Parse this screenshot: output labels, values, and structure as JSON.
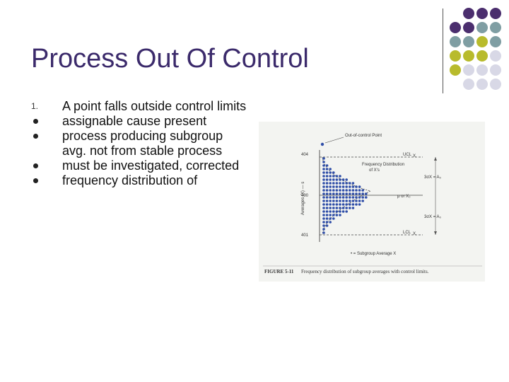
{
  "slide": {
    "title": "Process Out Of Control"
  },
  "bullets": [
    {
      "marker": "1.",
      "text": "A point falls outside control limits"
    },
    {
      "marker": "dot",
      "text": "assignable cause present"
    },
    {
      "marker": "dot",
      "text": "process producing subgroup avg. not from stable process"
    },
    {
      "marker": "dot",
      "text": "must be investigated, corrected"
    },
    {
      "marker": "dot",
      "text": "frequency distribution of"
    }
  ],
  "figure": {
    "ooc_label": "Out-of-control Point",
    "ucl_label": "UCL",
    "ucl_sub": "X",
    "lcl_label": "LCL",
    "lcl_sub": "X",
    "freq_label_1": "Frequency Distribution",
    "freq_label_2": "of X's",
    "center_label": "μ or X₀",
    "y_axis_label": "Averages (X) — s",
    "tick_top": "404",
    "tick_mid": "400",
    "tick_bot": "401",
    "sigma_upper": "3σX = A₀",
    "sigma_lower": "3σX = A₀",
    "legend": "• = Subgroup Average  X",
    "caption_bold": "FIGURE 5-11",
    "caption": "Frequency distribution of subgroup averages with control limits."
  },
  "colors": {
    "title": "#3b2a6b",
    "deco_purple": "#4b2e6e",
    "deco_teal": "#7f9ea3",
    "deco_olive": "#b8bb2c",
    "deco_lavender": "#d8d8e6",
    "dot_blue": "#2f4ea8"
  }
}
